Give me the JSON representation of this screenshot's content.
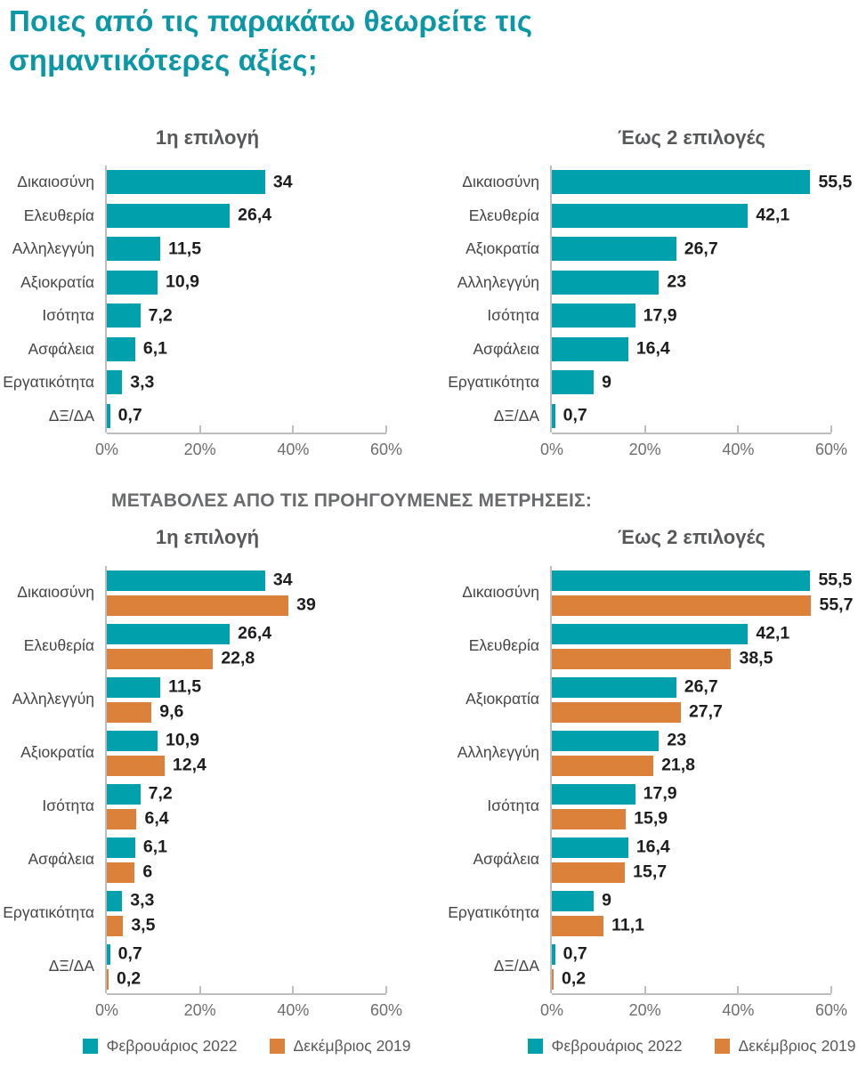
{
  "header": {
    "title_lines": [
      "Ποιες από τις παρακάτω θεωρείτε τις",
      "σημαντικότερες αξίες;"
    ]
  },
  "section_heading": "ΜΕΤΑΒΟΛΕΣ ΑΠΟ ΤΙΣ ΠΡΟΗΓΟΥΜΕΝΕΣ ΜΕΤΡΗΣΕΙΣ:",
  "colors": {
    "title_teal": "#0B97A6",
    "accent_teal": "#00A0AC",
    "accent_orange": "#DC8139",
    "axis_gray": "#BCBDBE",
    "category_gray": "#454547",
    "value_black": "#1D1D1F",
    "tick_gray": "#6E6E71",
    "subtitle_gray": "#57585A"
  },
  "legend": {
    "items": [
      {
        "label": "Φεβρουάριος 2022",
        "color_key": "teal"
      },
      {
        "label": "Δεκέμβριος 2019",
        "color_key": "orange"
      }
    ]
  },
  "chart_data": [
    {
      "id": "first-choice-current",
      "type": "bar",
      "orientation": "horizontal",
      "title": "1η επιλογή",
      "xlim": [
        0,
        60
      ],
      "x_ticks": [
        "0%",
        "20%",
        "40%",
        "60%"
      ],
      "grid": false,
      "legend_position": "none",
      "show_legend": false,
      "categories": [
        "Δικαιοσύνη",
        "Ελευθερία",
        "Αλληλεγγύη",
        "Αξιοκρατία",
        "Ισότητα",
        "Ασφάλεια",
        "Εργατικότητα",
        "ΔΞ/ΔΑ"
      ],
      "series": [
        {
          "name": "Φεβρουάριος 2022",
          "color": "teal",
          "values": [
            34,
            26.4,
            11.5,
            10.9,
            7.2,
            6.1,
            3.3,
            0.7
          ],
          "labels": [
            "34",
            "26,4",
            "11,5",
            "10,9",
            "7,2",
            "6,1",
            "3,3",
            "0,7"
          ]
        }
      ]
    },
    {
      "id": "two-choices-current",
      "type": "bar",
      "orientation": "horizontal",
      "title": "Έως 2 επιλογές",
      "xlim": [
        0,
        60
      ],
      "x_ticks": [
        "0%",
        "20%",
        "40%",
        "60%"
      ],
      "grid": false,
      "legend_position": "none",
      "show_legend": false,
      "categories": [
        "Δικαιοσύνη",
        "Ελευθερία",
        "Αξιοκρατία",
        "Αλληλεγγύη",
        "Ισότητα",
        "Ασφάλεια",
        "Εργατικότητα",
        "ΔΞ/ΔΑ"
      ],
      "series": [
        {
          "name": "Φεβρουάριος 2022",
          "color": "teal",
          "values": [
            55.5,
            42.1,
            26.7,
            23,
            17.9,
            16.4,
            9,
            0.7
          ],
          "labels": [
            "55,5",
            "42,1",
            "26,7",
            "23",
            "17,9",
            "16,4",
            "9",
            "0,7"
          ]
        }
      ]
    },
    {
      "id": "first-choice-comparison",
      "type": "bar",
      "orientation": "horizontal",
      "title": "1η επιλογή",
      "xlim": [
        0,
        60
      ],
      "x_ticks": [
        "0%",
        "20%",
        "40%",
        "60%"
      ],
      "grid": false,
      "legend_position": "bottom",
      "show_legend": true,
      "categories": [
        "Δικαιοσύνη",
        "Ελευθερία",
        "Αλληλεγγύη",
        "Αξιοκρατία",
        "Ισότητα",
        "Ασφάλεια",
        "Εργατικότητα",
        "ΔΞ/ΔΑ"
      ],
      "series": [
        {
          "name": "Φεβρουάριος 2022",
          "color": "teal",
          "values": [
            34,
            26.4,
            11.5,
            10.9,
            7.2,
            6.1,
            3.3,
            0.7
          ],
          "labels": [
            "34",
            "26,4",
            "11,5",
            "10,9",
            "7,2",
            "6,1",
            "3,3",
            "0,7"
          ]
        },
        {
          "name": "Δεκέμβριος 2019",
          "color": "orange",
          "values": [
            39,
            22.8,
            9.6,
            12.4,
            6.4,
            6,
            3.5,
            0.2
          ],
          "labels": [
            "39",
            "22,8",
            "9,6",
            "12,4",
            "6,4",
            "6",
            "3,5",
            "0,2"
          ]
        }
      ]
    },
    {
      "id": "two-choices-comparison",
      "type": "bar",
      "orientation": "horizontal",
      "title": "Έως 2 επιλογές",
      "xlim": [
        0,
        60
      ],
      "x_ticks": [
        "0%",
        "20%",
        "40%",
        "60%"
      ],
      "grid": false,
      "legend_position": "bottom",
      "show_legend": true,
      "categories": [
        "Δικαιοσύνη",
        "Ελευθερία",
        "Αξιοκρατία",
        "Αλληλεγγύη",
        "Ισότητα",
        "Ασφάλεια",
        "Εργατικότητα",
        "ΔΞ/ΔΑ"
      ],
      "series": [
        {
          "name": "Φεβρουάριος 2022",
          "color": "teal",
          "values": [
            55.5,
            42.1,
            26.7,
            23,
            17.9,
            16.4,
            9,
            0.7
          ],
          "labels": [
            "55,5",
            "42,1",
            "26,7",
            "23",
            "17,9",
            "16,4",
            "9",
            "0,7"
          ]
        },
        {
          "name": "Δεκέμβριος 2019",
          "color": "orange",
          "values": [
            55.7,
            38.5,
            27.7,
            21.8,
            15.9,
            15.7,
            11.1,
            0.2
          ],
          "labels": [
            "55,7",
            "38,5",
            "27,7",
            "21,8",
            "15,9",
            "15,7",
            "11,1",
            "0,2"
          ]
        }
      ]
    }
  ]
}
